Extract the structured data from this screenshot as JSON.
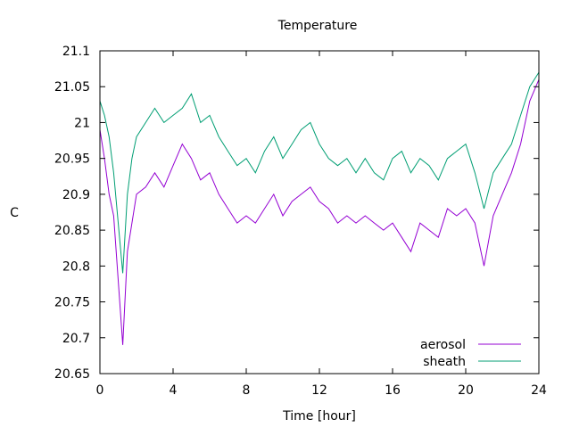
{
  "chart_data": {
    "type": "line",
    "title": "Temperature",
    "xlabel": "Time [hour]",
    "ylabel": "C",
    "xlim": [
      0,
      24
    ],
    "ylim": [
      20.65,
      21.1
    ],
    "xticks": [
      0,
      4,
      8,
      12,
      16,
      20,
      24
    ],
    "xtick_labels": [
      "0",
      "4",
      "8",
      "12",
      "16",
      "20",
      "24"
    ],
    "yticks": [
      20.65,
      20.7,
      20.75,
      20.8,
      20.85,
      20.9,
      20.95,
      21.0,
      21.05,
      21.1
    ],
    "ytick_labels": [
      "20.65",
      "20.7",
      "20.75",
      "20.8",
      "20.85",
      "20.9",
      "20.95",
      "21",
      "21.05",
      "21.1"
    ],
    "grid": false,
    "legend_position": "bottom-right",
    "series": [
      {
        "name": "aerosol",
        "color": "#9400d3",
        "x": [
          0,
          0.25,
          0.5,
          0.75,
          1.0,
          1.25,
          1.5,
          1.75,
          2.0,
          2.5,
          3.0,
          3.5,
          4.0,
          4.5,
          5.0,
          5.5,
          6.0,
          6.5,
          7.0,
          7.5,
          8.0,
          8.5,
          9.0,
          9.5,
          10.0,
          10.5,
          11.0,
          11.5,
          12.0,
          12.5,
          13.0,
          13.5,
          14.0,
          14.5,
          15.0,
          15.5,
          16.0,
          16.5,
          17.0,
          17.5,
          18.0,
          18.5,
          19.0,
          19.5,
          20.0,
          20.5,
          21.0,
          21.5,
          22.0,
          22.5,
          23.0,
          23.5,
          24.0
        ],
        "y": [
          20.99,
          20.95,
          20.9,
          20.87,
          20.78,
          20.69,
          20.82,
          20.86,
          20.9,
          20.91,
          20.93,
          20.91,
          20.94,
          20.97,
          20.95,
          20.92,
          20.93,
          20.9,
          20.88,
          20.86,
          20.87,
          20.86,
          20.88,
          20.9,
          20.87,
          20.89,
          20.9,
          20.91,
          20.89,
          20.88,
          20.86,
          20.87,
          20.86,
          20.87,
          20.86,
          20.85,
          20.86,
          20.84,
          20.82,
          20.86,
          20.85,
          20.84,
          20.88,
          20.87,
          20.88,
          20.86,
          20.8,
          20.87,
          20.9,
          20.93,
          20.97,
          21.03,
          21.06
        ]
      },
      {
        "name": "sheath",
        "color": "#009e73",
        "x": [
          0,
          0.25,
          0.5,
          0.75,
          1.0,
          1.25,
          1.5,
          1.75,
          2.0,
          2.5,
          3.0,
          3.5,
          4.0,
          4.5,
          5.0,
          5.5,
          6.0,
          6.5,
          7.0,
          7.5,
          8.0,
          8.5,
          9.0,
          9.5,
          10.0,
          10.5,
          11.0,
          11.5,
          12.0,
          12.5,
          13.0,
          13.5,
          14.0,
          14.5,
          15.0,
          15.5,
          16.0,
          16.5,
          17.0,
          17.5,
          18.0,
          18.5,
          19.0,
          19.5,
          20.0,
          20.5,
          21.0,
          21.5,
          22.0,
          22.5,
          23.0,
          23.5,
          24.0
        ],
        "y": [
          21.03,
          21.01,
          20.98,
          20.93,
          20.86,
          20.79,
          20.9,
          20.95,
          20.98,
          21.0,
          21.02,
          21.0,
          21.01,
          21.02,
          21.04,
          21.0,
          21.01,
          20.98,
          20.96,
          20.94,
          20.95,
          20.93,
          20.96,
          20.98,
          20.95,
          20.97,
          20.99,
          21.0,
          20.97,
          20.95,
          20.94,
          20.95,
          20.93,
          20.95,
          20.93,
          20.92,
          20.95,
          20.96,
          20.93,
          20.95,
          20.94,
          20.92,
          20.95,
          20.96,
          20.97,
          20.93,
          20.88,
          20.93,
          20.95,
          20.97,
          21.01,
          21.05,
          21.07
        ]
      }
    ]
  }
}
